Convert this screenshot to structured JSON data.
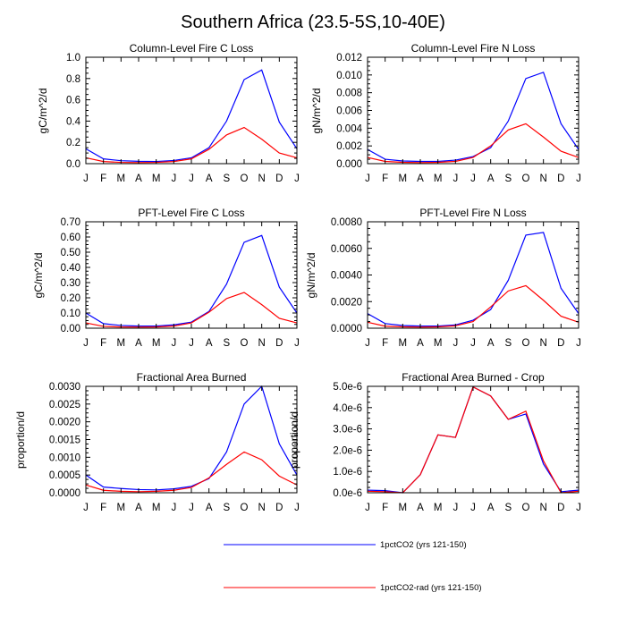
{
  "figure": {
    "title": "Southern Africa (23.5-5S,10-40E)"
  },
  "legend": [
    {
      "label": "1pctCO2 (yrs 121-150)",
      "color": "#0000ff"
    },
    {
      "label": "1pctCO2-rad (yrs 121-150)",
      "color": "#ff0000"
    }
  ],
  "chart_data": [
    {
      "type": "line",
      "title": "Column-Level Fire C Loss",
      "ylabel": "gC/m^2/d",
      "categories": [
        "J",
        "F",
        "M",
        "A",
        "M",
        "J",
        "J",
        "A",
        "S",
        "O",
        "N",
        "D",
        "J"
      ],
      "ylim": [
        0,
        1.0
      ],
      "yticks": [
        0,
        0.2,
        0.4,
        0.6,
        0.8,
        1.0
      ],
      "ytick_labels": [
        "0.0",
        "0.2",
        "0.4",
        "0.6",
        "0.8",
        "1.0"
      ],
      "series": [
        {
          "name": "1pctCO2 (yrs 121-150)",
          "color": "#0000ff",
          "values": [
            0.14,
            0.045,
            0.028,
            0.022,
            0.02,
            0.03,
            0.055,
            0.15,
            0.4,
            0.79,
            0.88,
            0.39,
            0.14
          ]
        },
        {
          "name": "1pctCO2-rad (yrs 121-150)",
          "color": "#ff0000",
          "values": [
            0.055,
            0.02,
            0.012,
            0.01,
            0.012,
            0.02,
            0.045,
            0.135,
            0.27,
            0.34,
            0.23,
            0.1,
            0.055
          ]
        }
      ]
    },
    {
      "type": "line",
      "title": "Column-Level Fire N Loss",
      "ylabel": "gN/m^2/d",
      "categories": [
        "J",
        "F",
        "M",
        "A",
        "M",
        "J",
        "J",
        "A",
        "S",
        "O",
        "N",
        "D",
        "J"
      ],
      "ylim": [
        0,
        0.012
      ],
      "yticks": [
        0,
        0.002,
        0.004,
        0.006,
        0.008,
        0.01,
        0.012
      ],
      "ytick_labels": [
        "0.000",
        "0.002",
        "0.004",
        "0.006",
        "0.008",
        "0.010",
        "0.012"
      ],
      "series": [
        {
          "name": "1pctCO2 (yrs 121-150)",
          "color": "#0000ff",
          "values": [
            0.0016,
            0.0005,
            0.0003,
            0.00025,
            0.00025,
            0.0004,
            0.0008,
            0.0018,
            0.0048,
            0.0096,
            0.0103,
            0.0045,
            0.0016
          ]
        },
        {
          "name": "1pctCO2-rad (yrs 121-150)",
          "color": "#ff0000",
          "values": [
            0.0007,
            0.00025,
            0.00015,
            0.00012,
            0.00015,
            0.00025,
            0.0007,
            0.002,
            0.0038,
            0.0045,
            0.003,
            0.0014,
            0.0007
          ]
        }
      ]
    },
    {
      "type": "line",
      "title": "PFT-Level Fire C Loss",
      "ylabel": "gC/m^2/d",
      "categories": [
        "J",
        "F",
        "M",
        "A",
        "M",
        "J",
        "J",
        "A",
        "S",
        "O",
        "N",
        "D",
        "J"
      ],
      "ylim": [
        0,
        0.7
      ],
      "yticks": [
        0,
        0.1,
        0.2,
        0.3,
        0.4,
        0.5,
        0.6,
        0.7
      ],
      "ytick_labels": [
        "0.00",
        "0.10",
        "0.20",
        "0.30",
        "0.40",
        "0.50",
        "0.60",
        "0.70"
      ],
      "series": [
        {
          "name": "1pctCO2 (yrs 121-150)",
          "color": "#0000ff",
          "values": [
            0.1,
            0.03,
            0.018,
            0.014,
            0.014,
            0.022,
            0.04,
            0.11,
            0.29,
            0.565,
            0.61,
            0.27,
            0.1
          ]
        },
        {
          "name": "1pctCO2-rad (yrs 121-150)",
          "color": "#ff0000",
          "values": [
            0.035,
            0.012,
            0.008,
            0.007,
            0.008,
            0.014,
            0.035,
            0.105,
            0.195,
            0.235,
            0.155,
            0.065,
            0.035
          ]
        }
      ]
    },
    {
      "type": "line",
      "title": "PFT-Level Fire N Loss",
      "ylabel": "gN/m^2/d",
      "categories": [
        "J",
        "F",
        "M",
        "A",
        "M",
        "J",
        "J",
        "A",
        "S",
        "O",
        "N",
        "D",
        "J"
      ],
      "ylim": [
        0,
        0.008
      ],
      "yticks": [
        0,
        0.002,
        0.004,
        0.006,
        0.008
      ],
      "ytick_labels": [
        "0.0000",
        "0.0020",
        "0.0040",
        "0.0060",
        "0.0080"
      ],
      "series": [
        {
          "name": "1pctCO2 (yrs 121-150)",
          "color": "#0000ff",
          "values": [
            0.0011,
            0.00035,
            0.0002,
            0.00016,
            0.00016,
            0.00025,
            0.0006,
            0.0014,
            0.0036,
            0.007,
            0.0072,
            0.003,
            0.0011
          ]
        },
        {
          "name": "1pctCO2-rad (yrs 121-150)",
          "color": "#ff0000",
          "values": [
            0.00045,
            0.00015,
            0.0001,
            8e-05,
            0.0001,
            0.00018,
            0.0005,
            0.0016,
            0.0028,
            0.0032,
            0.0021,
            0.0009,
            0.00045
          ]
        }
      ]
    },
    {
      "type": "line",
      "title": "Fractional Area Burned",
      "ylabel": "proportion/d",
      "categories": [
        "J",
        "F",
        "M",
        "A",
        "M",
        "J",
        "J",
        "A",
        "S",
        "O",
        "N",
        "D",
        "J"
      ],
      "ylim": [
        0,
        0.003
      ],
      "yticks": [
        0,
        0.0005,
        0.001,
        0.0015,
        0.002,
        0.0025,
        0.003
      ],
      "ytick_labels": [
        "0.0000",
        "0.0005",
        "0.0010",
        "0.0015",
        "0.0020",
        "0.0025",
        "0.0030"
      ],
      "series": [
        {
          "name": "1pctCO2 (yrs 121-150)",
          "color": "#0000ff",
          "values": [
            0.0005,
            0.00016,
            0.00012,
            9e-05,
            8e-05,
            0.00011,
            0.00018,
            0.0004,
            0.00115,
            0.0025,
            0.003,
            0.00138,
            0.0005
          ]
        },
        {
          "name": "1pctCO2-rad (yrs 121-150)",
          "color": "#ff0000",
          "values": [
            0.00022,
            7e-05,
            4e-05,
            3e-05,
            4e-05,
            7e-05,
            0.00015,
            0.00042,
            0.0008,
            0.00115,
            0.00093,
            0.00047,
            0.00022
          ]
        }
      ]
    },
    {
      "type": "line",
      "title": "Fractional Area Burned - Crop",
      "ylabel": "proportion/d",
      "categories": [
        "J",
        "F",
        "M",
        "A",
        "M",
        "J",
        "J",
        "A",
        "S",
        "O",
        "N",
        "D",
        "J"
      ],
      "ylim": [
        0,
        5e-06
      ],
      "yticks": [
        0,
        1e-06,
        2e-06,
        3e-06,
        4e-06,
        5e-06
      ],
      "ytick_labels": [
        "0.0e-6",
        "1.0e-6",
        "2.0e-6",
        "3.0e-6",
        "4.0e-6",
        "5.0e-6"
      ],
      "series": [
        {
          "name": "1pctCO2 (yrs 121-150)",
          "color": "#0000ff",
          "values": [
            1.2e-07,
            1e-07,
            0.0,
            8.5e-07,
            2.72e-06,
            2.6e-06,
            4.97e-06,
            4.55e-06,
            3.45e-06,
            3.7e-06,
            1.35e-06,
            5e-08,
            1.2e-07
          ]
        },
        {
          "name": "1pctCO2-rad (yrs 121-150)",
          "color": "#ff0000",
          "values": [
            7e-08,
            5e-08,
            0.0,
            8.5e-07,
            2.72e-06,
            2.6e-06,
            4.97e-06,
            4.55e-06,
            3.45e-06,
            3.83e-06,
            1.5e-06,
            0.0,
            7e-08
          ]
        }
      ]
    }
  ]
}
